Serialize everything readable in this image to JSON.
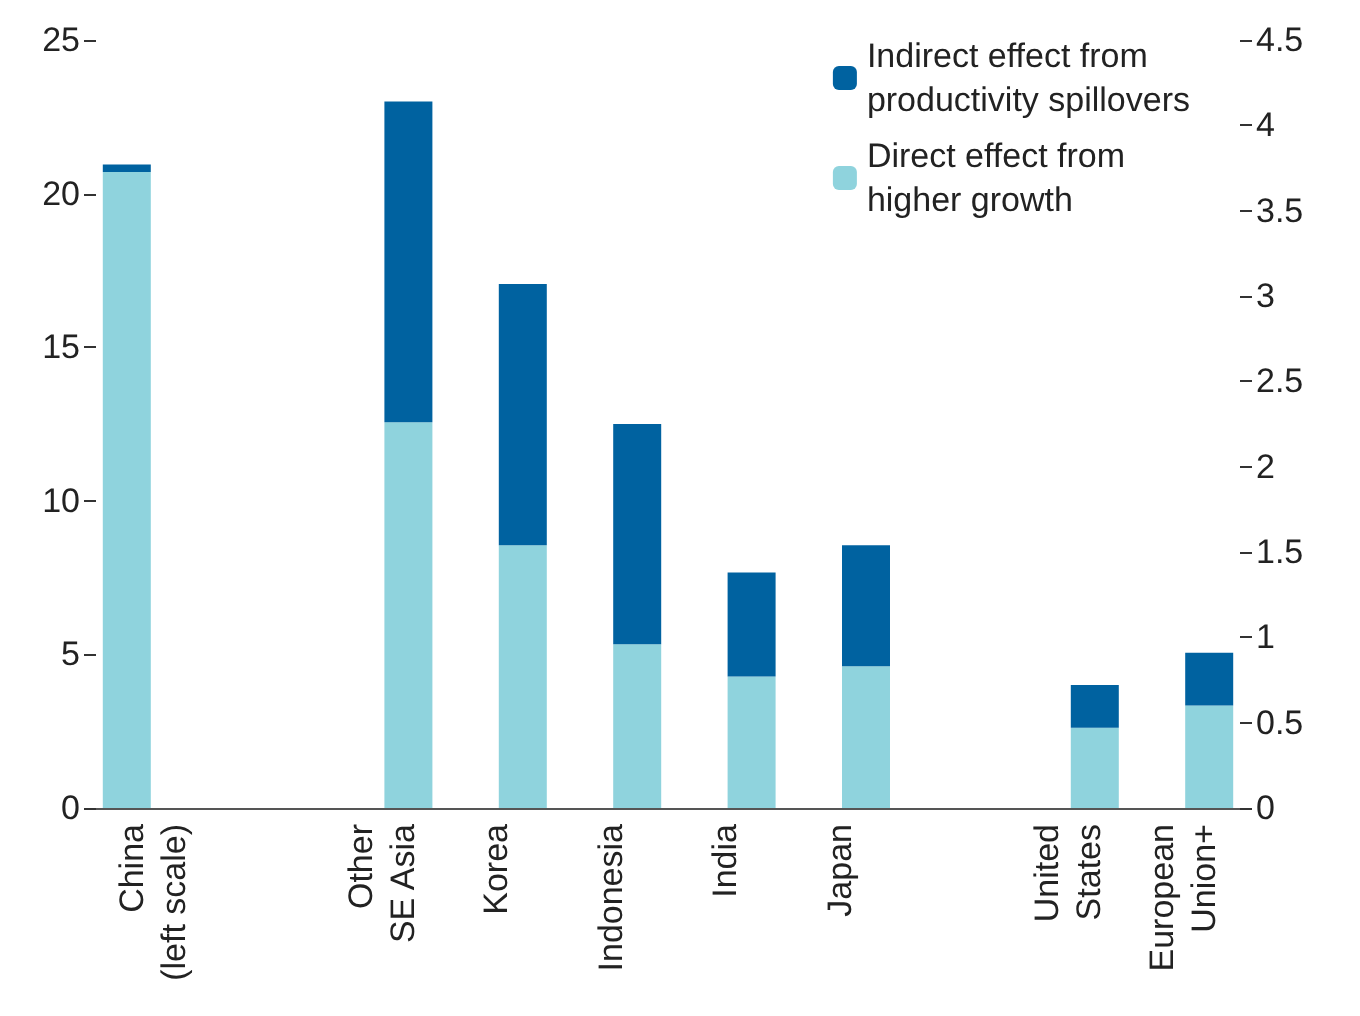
{
  "chart_data": {
    "type": "bar",
    "stacked": true,
    "categories": [
      "China\n(left scale)",
      null,
      "Other\nSE Asia",
      "Korea",
      "Indonesia",
      "India",
      "Japan",
      null,
      "United\nStates",
      "European\nUnion+"
    ],
    "series": [
      {
        "name": "Direct effect from\nhigher growth",
        "color": "#8fd3dd",
        "values": [
          20.7,
          null,
          null,
          null,
          null,
          null,
          null,
          null,
          null,
          null
        ]
      },
      {
        "name": "Indirect effect from\nproductivity spillovers",
        "color": "#0062a0",
        "values": [
          0.25,
          null,
          null,
          null,
          null,
          null,
          null,
          null,
          null,
          null
        ]
      },
      {
        "color": "#8fd3dd",
        "axis": "y2",
        "values": [
          null,
          null,
          2.26,
          1.54,
          0.96,
          0.77,
          0.83,
          null,
          0.47,
          0.6
        ]
      },
      {
        "color": "#0062a0",
        "axis": "y2",
        "values": [
          null,
          null,
          1.88,
          1.53,
          1.29,
          0.61,
          0.71,
          null,
          0.25,
          0.31
        ]
      }
    ],
    "ylim": [
      0,
      25
    ],
    "yticks": [
      0,
      5,
      10,
      15,
      20,
      25
    ],
    "y2lim": [
      0,
      4.5
    ],
    "y2ticks": [
      0,
      0.5,
      1,
      1.5,
      2,
      2.5,
      3,
      3.5,
      4,
      4.5
    ],
    "legend": "top right",
    "grid": false
  }
}
